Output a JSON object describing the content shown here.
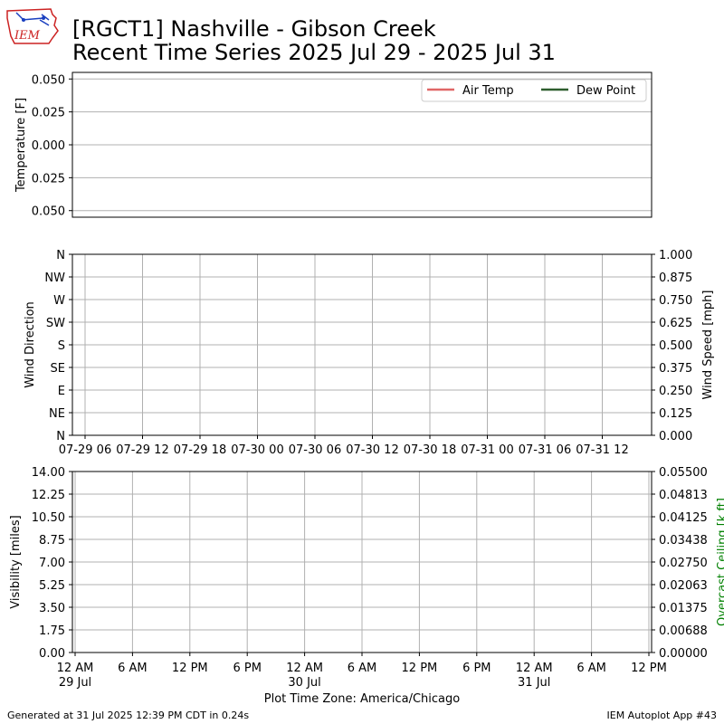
{
  "header": {
    "title_line1": "[RGCT1] Nashville - Gibson Creek",
    "title_line2": "Recent Time Series 2025 Jul 29 - 2025 Jul 31",
    "logo_text": "IEM"
  },
  "footer": {
    "generated": "Generated at 31 Jul 2025 12:39 PM CDT in 0.24s",
    "app": "IEM Autoplot App #43"
  },
  "colors": {
    "air_temp": "#e06666",
    "dew_point": "#2e5e2e",
    "grid": "#b0b0b0",
    "ceiling_axis": "#008000",
    "logo_red": "#cc2222",
    "logo_blue": "#1a3fbf"
  },
  "chart_data": [
    {
      "id": "temperature",
      "type": "line",
      "ylabel": "Temperature [F]",
      "ylim": [
        -0.055,
        0.055
      ],
      "yticks": [
        0.05,
        0.025,
        0.0,
        -0.025,
        -0.05
      ],
      "ytick_labels": [
        "0.050",
        "0.025",
        "0.000",
        "0.025",
        "0.050"
      ],
      "grid": true,
      "legend_position": "top-right",
      "series": [
        {
          "name": "Air Temp",
          "color": "#e06666",
          "values": []
        },
        {
          "name": "Dew Point",
          "color": "#2e5e2e",
          "values": []
        }
      ]
    },
    {
      "id": "wind",
      "type": "scatter",
      "ylabel": "Wind Direction",
      "y_categories": [
        "N",
        "NE",
        "E",
        "SE",
        "S",
        "SW",
        "W",
        "NW",
        "N"
      ],
      "ylabel_right": "Wind Speed [mph]",
      "ylim_right": [
        0,
        1
      ],
      "yticks_right": [
        "0.000",
        "0.125",
        "0.250",
        "0.375",
        "0.500",
        "0.625",
        "0.750",
        "0.875",
        "1.000"
      ],
      "xticks": [
        "07-29 06",
        "07-29 12",
        "07-29 18",
        "07-30 00",
        "07-30 06",
        "07-30 12",
        "07-30 18",
        "07-31 00",
        "07-31 06",
        "07-31 12"
      ],
      "grid": true,
      "series": []
    },
    {
      "id": "visibility",
      "type": "line",
      "ylabel": "Visibility [miles]",
      "ylim": [
        0,
        14
      ],
      "yticks": [
        "0.00",
        "1.75",
        "3.50",
        "5.25",
        "7.00",
        "8.75",
        "10.50",
        "12.25",
        "14.00"
      ],
      "ylabel_right": "Overcast Ceiling [k ft]",
      "ylim_right": [
        0,
        0.055
      ],
      "yticks_right": [
        "0.00000",
        "0.00688",
        "0.01375",
        "0.02063",
        "0.02750",
        "0.03438",
        "0.04125",
        "0.04813",
        "0.05500"
      ],
      "xlabel": "Plot Time Zone: America/Chicago",
      "xticks": [
        "12 AM",
        "6 AM",
        "12 PM",
        "6 PM",
        "12 AM",
        "6 AM",
        "12 PM",
        "6 PM",
        "12 AM",
        "6 AM",
        "12 PM"
      ],
      "xtick_dates": [
        "29 Jul",
        "",
        "",
        "",
        "30 Jul",
        "",
        "",
        "",
        "31 Jul",
        "",
        ""
      ],
      "grid": true,
      "series": []
    }
  ]
}
